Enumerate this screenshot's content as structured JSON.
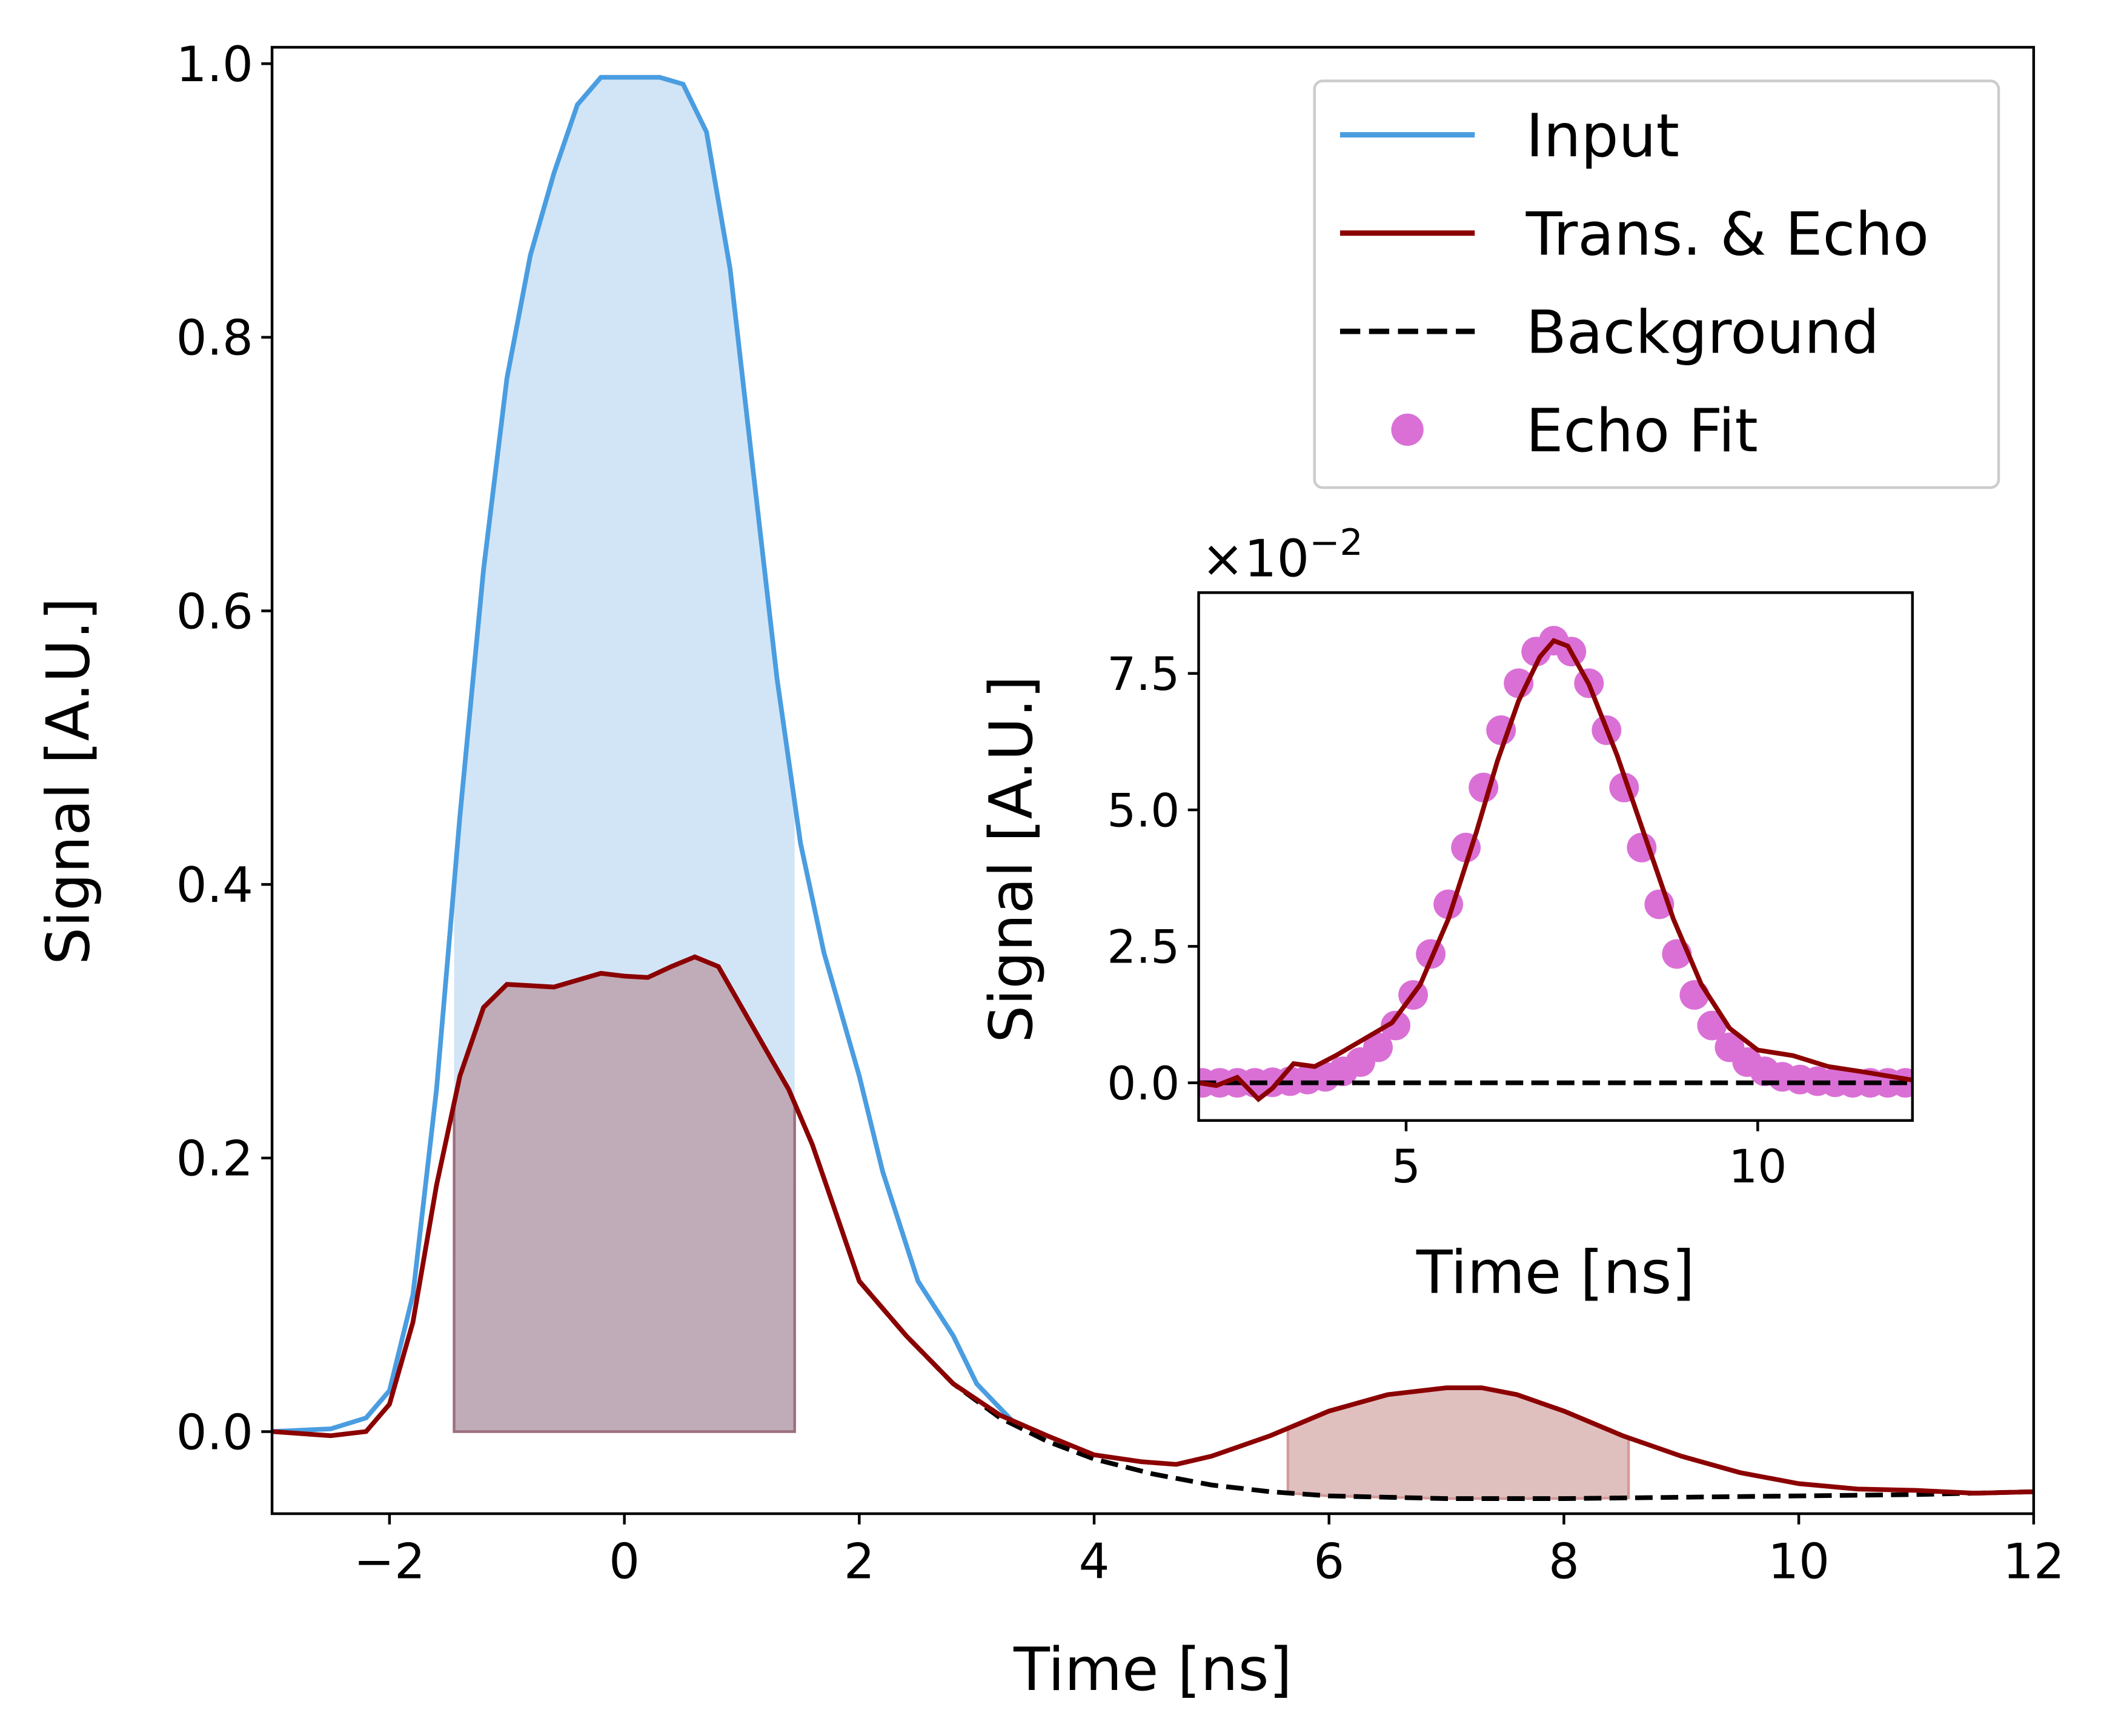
{
  "chart_data": [
    {
      "type": "line",
      "name": "main",
      "xlabel": "Time [ns]",
      "ylabel": "Signal [A.U.]",
      "xlim": [
        -3,
        12
      ],
      "ylim": [
        -0.06,
        1.012
      ],
      "xticks": [
        -2,
        0,
        2,
        4,
        6,
        8,
        10,
        12
      ],
      "xtick_labels": [
        "−2",
        "0",
        "2",
        "4",
        "6",
        "8",
        "10",
        "12"
      ],
      "yticks": [
        0.0,
        0.2,
        0.4,
        0.6,
        0.8,
        1.0
      ],
      "ytick_labels": [
        "0.0",
        "0.2",
        "0.4",
        "0.6",
        "0.8",
        "1.0"
      ],
      "grid": false,
      "legend_position": "top-right",
      "colors": {
        "input": "#4a9de0",
        "input_fill": "#d2e5f6",
        "trans": "#8b0000",
        "trans_fill": "#c0acb8",
        "echo_fill": "#e0bfbf",
        "background": "#000000",
        "echo_fit": "#da70d6"
      },
      "shaded_regions": [
        {
          "series": "Input",
          "x": [
            -1.45,
            1.45
          ]
        },
        {
          "series": "Trans. & Echo",
          "x": [
            -1.45,
            1.45
          ]
        },
        {
          "series": "Echo",
          "x": [
            5.65,
            8.55
          ]
        }
      ],
      "series": [
        {
          "name": "Input",
          "style": "solid",
          "x": [
            -3,
            -2.5,
            -2.2,
            -2,
            -1.8,
            -1.6,
            -1.4,
            -1.2,
            -1,
            -0.8,
            -0.6,
            -0.4,
            -0.2,
            0,
            0.3,
            0.5,
            0.7,
            0.9,
            1.1,
            1.3,
            1.5,
            1.7,
            2.0,
            2.2,
            2.5,
            2.8,
            3.0,
            3.3
          ],
          "y": [
            0,
            0.002,
            0.01,
            0.03,
            0.1,
            0.25,
            0.45,
            0.63,
            0.77,
            0.86,
            0.92,
            0.97,
            0.99,
            0.99,
            0.99,
            0.985,
            0.95,
            0.85,
            0.7,
            0.55,
            0.43,
            0.35,
            0.26,
            0.19,
            0.11,
            0.07,
            0.035,
            0.008
          ]
        },
        {
          "name": "Trans. & Echo",
          "style": "solid",
          "x": [
            -3,
            -2.5,
            -2.2,
            -2,
            -1.8,
            -1.6,
            -1.4,
            -1.2,
            -1,
            -0.8,
            -0.6,
            -0.4,
            -0.2,
            0,
            0.2,
            0.4,
            0.6,
            0.8,
            1.0,
            1.2,
            1.4,
            1.6,
            1.8,
            2.0,
            2.4,
            2.8,
            3.2,
            3.6,
            4,
            4.4,
            4.7,
            5.0,
            5.5,
            6,
            6.5,
            7,
            7.3,
            7.6,
            8,
            8.5,
            9,
            9.5,
            10,
            10.5,
            11,
            11.5,
            12
          ],
          "y": [
            0,
            -0.003,
            0,
            0.02,
            0.08,
            0.18,
            0.26,
            0.31,
            0.327,
            0.326,
            0.325,
            0.33,
            0.335,
            0.333,
            0.332,
            0.34,
            0.347,
            0.34,
            0.31,
            0.28,
            0.25,
            0.21,
            0.16,
            0.11,
            0.07,
            0.035,
            0.012,
            -0.003,
            -0.017,
            -0.022,
            -0.024,
            -0.018,
            -0.003,
            0.015,
            0.027,
            0.032,
            0.032,
            0.027,
            0.015,
            -0.003,
            -0.018,
            -0.03,
            -0.038,
            -0.042,
            -0.043,
            -0.045,
            -0.044
          ]
        },
        {
          "name": "Background",
          "style": "dashed",
          "x": [
            2,
            2.4,
            2.8,
            3.2,
            3.6,
            4,
            4.5,
            5,
            5.5,
            6,
            7,
            8,
            9,
            10,
            11,
            12
          ],
          "y": [
            0.11,
            0.07,
            0.035,
            0.01,
            -0.007,
            -0.02,
            -0.031,
            -0.039,
            -0.044,
            -0.047,
            -0.049,
            -0.049,
            -0.048,
            -0.047,
            -0.046,
            -0.044
          ]
        }
      ],
      "legend": [
        "Input",
        "Trans. & Echo",
        "Background",
        "Echo Fit"
      ]
    },
    {
      "type": "line",
      "name": "inset",
      "xlabel": "Time [ns]",
      "ylabel": "Signal [A.U.]",
      "offset_text": "×10",
      "offset_exponent": "−2",
      "xlim": [
        2.05,
        12.2
      ],
      "ylim": [
        -0.69,
        8.98
      ],
      "xticks": [
        5,
        10
      ],
      "xtick_labels": [
        "5",
        "10"
      ],
      "yticks": [
        0.0,
        2.5,
        5.0,
        7.5
      ],
      "ytick_labels": [
        "0.0",
        "2.5",
        "5.0",
        "7.5"
      ],
      "grid": false,
      "series": [
        {
          "name": "Trans. & Echo",
          "style": "solid",
          "x": [
            2.05,
            2.3,
            2.6,
            2.9,
            3.1,
            3.4,
            3.7,
            4,
            4.4,
            4.8,
            5.2,
            5.6,
            6,
            6.3,
            6.6,
            6.9,
            7.1,
            7.3,
            7.6,
            8,
            8.4,
            8.8,
            9.2,
            9.6,
            10,
            10.5,
            11,
            11.5,
            12.2
          ],
          "y": [
            0,
            -0.05,
            0.1,
            -0.3,
            -0.1,
            0.35,
            0.3,
            0.5,
            0.8,
            1.1,
            1.8,
            3.0,
            4.6,
            5.9,
            7.0,
            7.8,
            8.1,
            8.0,
            7.3,
            6.0,
            4.5,
            3.0,
            1.8,
            1.0,
            0.6,
            0.5,
            0.3,
            0.2,
            0.05
          ]
        },
        {
          "name": "Background",
          "style": "dashed",
          "x": [
            2.05,
            12.2
          ],
          "y": [
            0,
            0
          ]
        },
        {
          "name": "Echo Fit",
          "style": "markers",
          "x": [
            2.1,
            2.35,
            2.6,
            2.85,
            3.1,
            3.35,
            3.6,
            3.85,
            4.1,
            4.35,
            4.6,
            4.85,
            5.1,
            5.35,
            5.6,
            5.85,
            6.1,
            6.35,
            6.6,
            6.85,
            7.1,
            7.35,
            7.6,
            7.85,
            8.1,
            8.35,
            8.6,
            8.85,
            9.1,
            9.35,
            9.6,
            9.85,
            10.1,
            10.35,
            10.6,
            10.85,
            11.1,
            11.35,
            11.6,
            11.85,
            12.1
          ],
          "y": [
            0,
            0,
            0,
            0,
            0.01,
            0.03,
            0.06,
            0.11,
            0.21,
            0.38,
            0.65,
            1.05,
            1.61,
            2.36,
            3.27,
            4.31,
            5.41,
            6.46,
            7.32,
            7.9,
            8.1,
            7.9,
            7.32,
            6.46,
            5.41,
            4.31,
            3.27,
            2.36,
            1.61,
            1.05,
            0.65,
            0.38,
            0.21,
            0.11,
            0.06,
            0.03,
            0.01,
            0,
            0,
            0,
            0
          ]
        }
      ]
    }
  ]
}
